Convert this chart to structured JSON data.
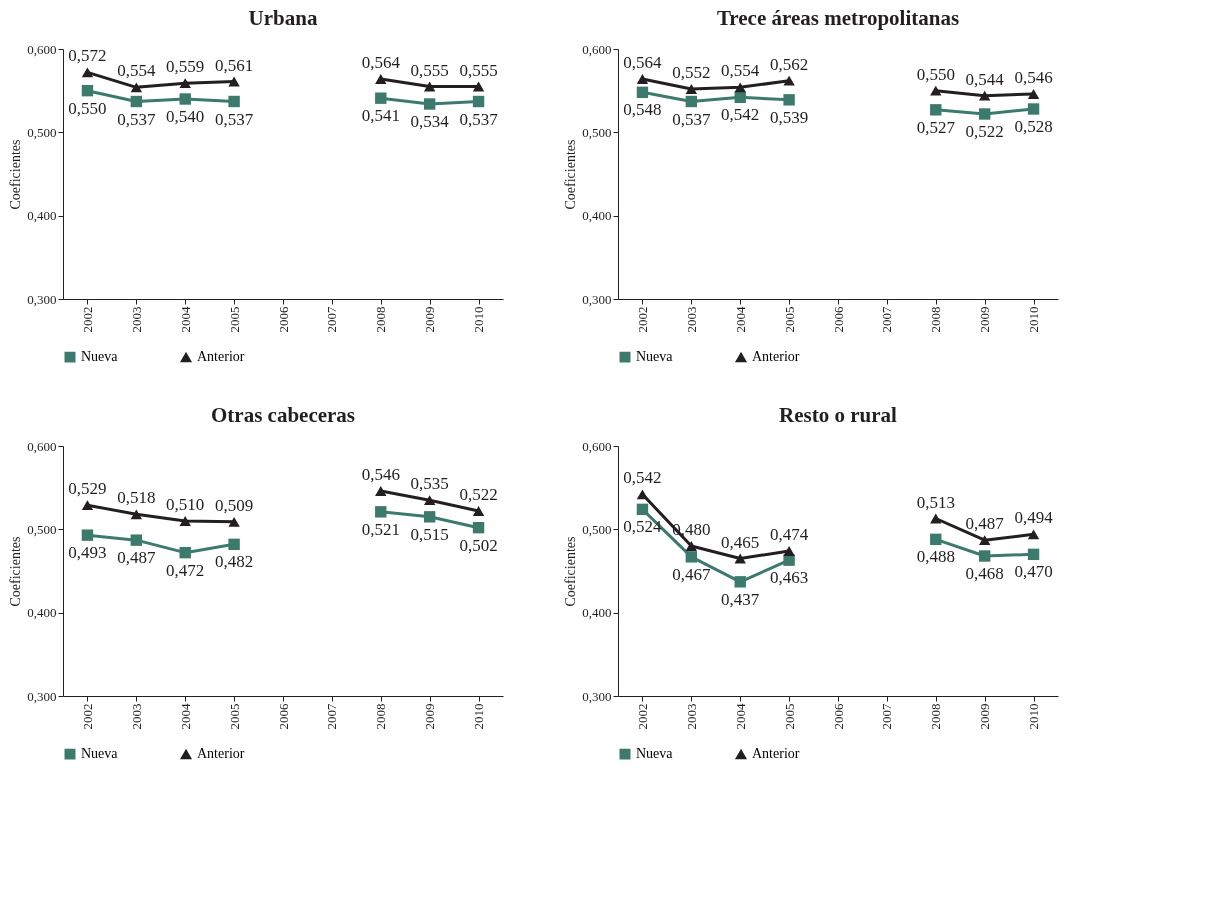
{
  "chart_data": [
    {
      "type": "line",
      "title": "Urbana",
      "ylabel": "Coeficientes",
      "categories": [
        "2002",
        "2003",
        "2004",
        "2005",
        "2006",
        "2007",
        "2008",
        "2009",
        "2010"
      ],
      "ylim": [
        0.3,
        0.6
      ],
      "yticks": [
        {
          "value": 0.3,
          "label": "0,300"
        },
        {
          "value": 0.4,
          "label": "0,400"
        },
        {
          "value": 0.5,
          "label": "0,500"
        },
        {
          "value": 0.6,
          "label": "0,600"
        }
      ],
      "grid": false,
      "legend": "bottom",
      "line_style": "solid",
      "series": [
        {
          "name": "Nueva",
          "color": "#3d7a6e",
          "marker": "square",
          "values": [
            0.55,
            0.537,
            0.54,
            0.537,
            null,
            null,
            0.541,
            0.534,
            0.537
          ],
          "value_labels": [
            "0,550",
            "0,537",
            "0,540",
            "0,537",
            null,
            null,
            "0,541",
            "0,534",
            "0,537"
          ]
        },
        {
          "name": "Anterior",
          "color": "#231f20",
          "marker": "triangle",
          "values": [
            0.572,
            0.554,
            0.559,
            0.561,
            null,
            null,
            0.564,
            0.555,
            0.555
          ],
          "value_labels": [
            "0,572",
            "0,554",
            "0,559",
            "0,561",
            null,
            null,
            "0,564",
            "0,555",
            "0,555"
          ]
        }
      ]
    },
    {
      "type": "line",
      "title": "Trece áreas metropolitanas",
      "ylabel": "Coeficientes",
      "categories": [
        "2002",
        "2003",
        "2004",
        "2005",
        "2006",
        "2007",
        "2008",
        "2009",
        "2010"
      ],
      "ylim": [
        0.3,
        0.6
      ],
      "yticks": [
        {
          "value": 0.3,
          "label": "0,300"
        },
        {
          "value": 0.4,
          "label": "0,400"
        },
        {
          "value": 0.5,
          "label": "0,500"
        },
        {
          "value": 0.6,
          "label": "0,600"
        }
      ],
      "grid": false,
      "legend": "bottom",
      "line_style": "solid",
      "series": [
        {
          "name": "Nueva",
          "color": "#3d7a6e",
          "marker": "square",
          "values": [
            0.548,
            0.537,
            0.542,
            0.539,
            null,
            null,
            0.527,
            0.522,
            0.528
          ],
          "value_labels": [
            "0,548",
            "0,537",
            "0,542",
            "0,539",
            null,
            null,
            "0,527",
            "0,522",
            "0,528"
          ]
        },
        {
          "name": "Anterior",
          "color": "#231f20",
          "marker": "triangle",
          "values": [
            0.564,
            0.552,
            0.554,
            0.562,
            null,
            null,
            0.55,
            0.544,
            0.546
          ],
          "value_labels": [
            "0,564",
            "0,552",
            "0,554",
            "0,562",
            null,
            null,
            "0,550",
            "0,544",
            "0,546"
          ]
        }
      ]
    },
    {
      "type": "line",
      "title": "Otras cabeceras",
      "ylabel": "Coeficientes",
      "categories": [
        "2002",
        "2003",
        "2004",
        "2005",
        "2006",
        "2007",
        "2008",
        "2009",
        "2010"
      ],
      "ylim": [
        0.3,
        0.6
      ],
      "yticks": [
        {
          "value": 0.3,
          "label": "0,300"
        },
        {
          "value": 0.4,
          "label": "0,400"
        },
        {
          "value": 0.5,
          "label": "0,500"
        },
        {
          "value": 0.6,
          "label": "0,600"
        }
      ],
      "grid": false,
      "legend": "bottom",
      "line_style": "solid",
      "series": [
        {
          "name": "Nueva",
          "color": "#3d7a6e",
          "marker": "square",
          "values": [
            0.493,
            0.487,
            0.472,
            0.482,
            null,
            null,
            0.521,
            0.515,
            0.502
          ],
          "value_labels": [
            "0,493",
            "0,487",
            "0,472",
            "0,482",
            null,
            null,
            "0,521",
            "0,515",
            "0,502"
          ]
        },
        {
          "name": "Anterior",
          "color": "#231f20",
          "marker": "triangle",
          "values": [
            0.529,
            0.518,
            0.51,
            0.509,
            null,
            null,
            0.546,
            0.535,
            0.522
          ],
          "value_labels": [
            "0,529",
            "0,518",
            "0,510",
            "0,509",
            null,
            null,
            "0,546",
            "0,535",
            "0,522"
          ]
        }
      ]
    },
    {
      "type": "line",
      "title": "Resto o rural",
      "ylabel": "Coeficientes",
      "categories": [
        "2002",
        "2003",
        "2004",
        "2005",
        "2006",
        "2007",
        "2008",
        "2009",
        "2010"
      ],
      "ylim": [
        0.3,
        0.6
      ],
      "yticks": [
        {
          "value": 0.3,
          "label": "0,300"
        },
        {
          "value": 0.4,
          "label": "0,400"
        },
        {
          "value": 0.5,
          "label": "0,500"
        },
        {
          "value": 0.6,
          "label": "0,600"
        }
      ],
      "grid": false,
      "legend": "bottom",
      "line_style": "solid",
      "series": [
        {
          "name": "Nueva",
          "color": "#3d7a6e",
          "marker": "square",
          "values": [
            0.524,
            0.467,
            0.437,
            0.463,
            null,
            null,
            0.488,
            0.468,
            0.47
          ],
          "value_labels": [
            "0,524",
            "0,467",
            "0,437",
            "0,463",
            null,
            null,
            "0,488",
            "0,468",
            "0,470"
          ]
        },
        {
          "name": "Anterior",
          "color": "#231f20",
          "marker": "triangle",
          "values": [
            0.542,
            0.48,
            0.465,
            0.474,
            null,
            null,
            0.513,
            0.487,
            0.494
          ],
          "value_labels": [
            "0,542",
            "0,480",
            "0,465",
            "0,474",
            null,
            null,
            "0,513",
            "0,487",
            "0,494"
          ]
        }
      ]
    }
  ]
}
